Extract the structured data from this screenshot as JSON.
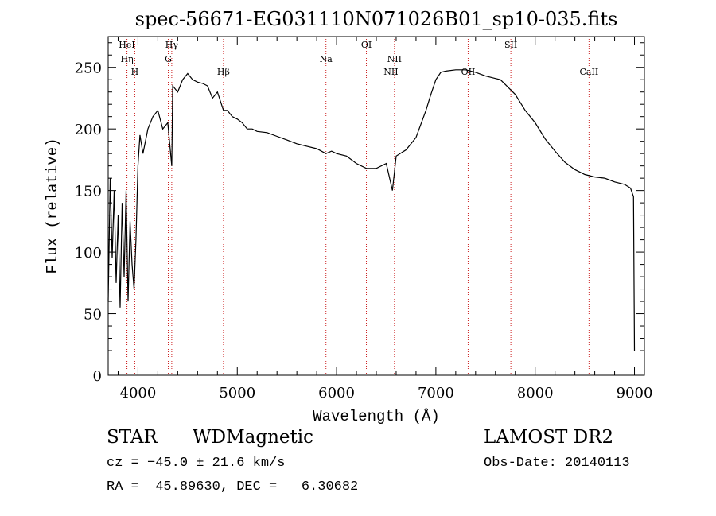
{
  "chart_data": {
    "type": "line",
    "title": "spec-56671-EG031110N071026B01_sp10-035.fits",
    "xlabel": "Wavelength (Å)",
    "ylabel": "Flux (relative)",
    "xlim": [
      3700,
      9100
    ],
    "ylim": [
      0,
      275
    ],
    "xticks": [
      4000,
      5000,
      6000,
      7000,
      8000,
      9000
    ],
    "yticks": [
      0,
      50,
      100,
      150,
      200,
      250
    ],
    "grid": false,
    "line_color": "#000000",
    "marker_color": "#cc2222",
    "series": [
      {
        "x": [
          3700,
          3720,
          3740,
          3760,
          3780,
          3800,
          3820,
          3840,
          3860,
          3880,
          3900,
          3920,
          3940,
          3960,
          3980,
          4000,
          4020,
          4050,
          4100,
          4150,
          4200,
          4250,
          4300,
          4340,
          4350,
          4400,
          4450,
          4500,
          4550,
          4600,
          4650,
          4700,
          4750,
          4800,
          4861,
          4900,
          4950,
          5000,
          5050,
          5100,
          5150,
          5200,
          5300,
          5400,
          5500,
          5600,
          5700,
          5800,
          5893,
          5950,
          6000,
          6100,
          6200,
          6300,
          6400,
          6500,
          6563,
          6600,
          6700,
          6800,
          6900,
          6950,
          7000,
          7050,
          7100,
          7200,
          7300,
          7400,
          7500,
          7600,
          7650,
          7700,
          7800,
          7900,
          8000,
          8100,
          8200,
          8300,
          8400,
          8500,
          8600,
          8700,
          8800,
          8900,
          8960,
          8990,
          9000
        ],
        "y": [
          60,
          160,
          95,
          150,
          75,
          130,
          55,
          140,
          80,
          150,
          60,
          125,
          90,
          70,
          110,
          170,
          195,
          180,
          200,
          210,
          215,
          200,
          205,
          170,
          235,
          230,
          240,
          245,
          240,
          238,
          237,
          235,
          225,
          230,
          215,
          215,
          210,
          208,
          205,
          200,
          200,
          198,
          197,
          194,
          191,
          188,
          186,
          184,
          180,
          182,
          180,
          178,
          172,
          168,
          168,
          172,
          150,
          178,
          183,
          193,
          215,
          228,
          240,
          246,
          247,
          248,
          248,
          246,
          243,
          241,
          240,
          236,
          228,
          215,
          205,
          192,
          182,
          173,
          167,
          163,
          161,
          160,
          157,
          155,
          152,
          145,
          20
        ]
      }
    ],
    "lines": [
      {
        "label": "HeI",
        "wavelength": 3888
      },
      {
        "label": "Hη",
        "wavelength": 3889
      },
      {
        "label": "H",
        "wavelength": 3968
      },
      {
        "label": "Hγ",
        "wavelength": 4340
      },
      {
        "label": "G",
        "wavelength": 4305
      },
      {
        "label": "Hβ",
        "wavelength": 4861
      },
      {
        "label": "Na",
        "wavelength": 5893
      },
      {
        "label": "OI",
        "wavelength": 6300
      },
      {
        "label": "NII",
        "wavelength": 6548
      },
      {
        "label": "NII",
        "wavelength": 6583
      },
      {
        "label": "OII",
        "wavelength": 7325
      },
      {
        "label": "SII",
        "wavelength": 7755
      },
      {
        "label": "CaII",
        "wavelength": 8542
      }
    ]
  },
  "info": {
    "star_label": "STAR",
    "star_class": "WDMagnetic",
    "survey": "LAMOST DR2",
    "cz": "cz = −45.0 ± 21.6 km/s",
    "obs_date": "Obs-Date: 20140113",
    "coords": "RA =  45.89630, DEC =   6.30682"
  }
}
